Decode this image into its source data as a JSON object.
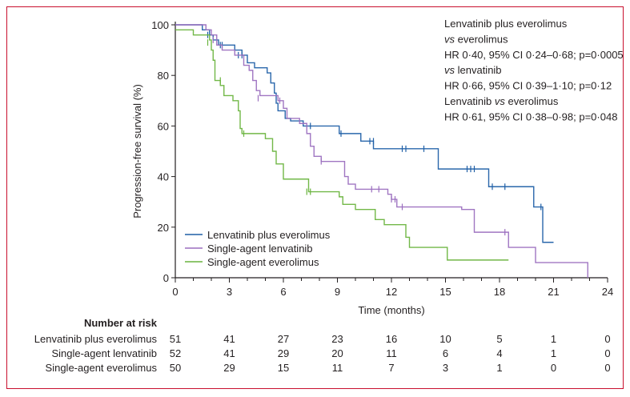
{
  "chart_data": {
    "type": "line",
    "subtype": "kaplan-meier",
    "title": "",
    "xlabel": "Time (months)",
    "ylabel": "Progression-free survival (%)",
    "xlim": [
      0,
      24
    ],
    "ylim": [
      0,
      100
    ],
    "xticks": [
      0,
      3,
      6,
      9,
      12,
      15,
      18,
      21,
      24
    ],
    "yticks": [
      0,
      20,
      40,
      60,
      80,
      100
    ],
    "grid": false,
    "legend_position": "bottom-left",
    "annotation_lines": [
      "Lenvatinib plus everolimus",
      "vs everolimus",
      "HR 0·40, 95% CI 0·24–0·68; p=0·0005",
      "vs lenvatinib",
      "HR 0·66, 95% CI 0·39–1·10; p=0·12",
      "Lenvatinib vs everolimus",
      "HR 0·61, 95% CI 0·38–0·98; p=0·048"
    ],
    "annotation_italic_prefix": [
      false,
      true,
      false,
      true,
      false,
      false,
      false
    ],
    "series": [
      {
        "name": "Lenvatinib plus everolimus",
        "color": "#1f5fa6",
        "steps": [
          [
            0,
            100
          ],
          [
            1.5,
            98
          ],
          [
            1.9,
            96
          ],
          [
            2.1,
            94
          ],
          [
            2.4,
            92
          ],
          [
            3.3,
            90
          ],
          [
            3.7,
            88
          ],
          [
            4.0,
            85
          ],
          [
            4.4,
            83
          ],
          [
            5.1,
            81
          ],
          [
            5.3,
            77
          ],
          [
            5.5,
            73
          ],
          [
            5.6,
            69
          ],
          [
            5.7,
            66
          ],
          [
            6.1,
            63
          ],
          [
            6.4,
            62
          ],
          [
            7.1,
            60
          ],
          [
            9.1,
            57
          ],
          [
            10.3,
            54
          ],
          [
            11.0,
            51
          ],
          [
            14.6,
            43
          ],
          [
            17.4,
            36
          ],
          [
            19.9,
            28
          ],
          [
            20.4,
            14
          ],
          [
            21.0,
            14
          ]
        ],
        "censored": [
          [
            1.8,
            96
          ],
          [
            2.5,
            92
          ],
          [
            2.6,
            92
          ],
          [
            3.5,
            88
          ],
          [
            3.7,
            88
          ],
          [
            7.5,
            60
          ],
          [
            9.2,
            57
          ],
          [
            10.8,
            54
          ],
          [
            11.0,
            54
          ],
          [
            12.6,
            51
          ],
          [
            12.8,
            51
          ],
          [
            13.8,
            51
          ],
          [
            16.2,
            43
          ],
          [
            16.4,
            43
          ],
          [
            16.6,
            43
          ],
          [
            17.6,
            36
          ],
          [
            18.3,
            36
          ],
          [
            20.3,
            28
          ]
        ]
      },
      {
        "name": "Single-agent lenvatinib",
        "color": "#9b6fbf",
        "steps": [
          [
            0,
            100
          ],
          [
            1.7,
            98
          ],
          [
            2.0,
            96
          ],
          [
            2.3,
            92
          ],
          [
            2.6,
            90
          ],
          [
            3.3,
            88
          ],
          [
            3.8,
            84
          ],
          [
            4.1,
            82
          ],
          [
            4.3,
            78
          ],
          [
            4.5,
            74
          ],
          [
            4.7,
            72
          ],
          [
            5.7,
            70
          ],
          [
            6.0,
            67
          ],
          [
            6.2,
            63
          ],
          [
            6.9,
            61
          ],
          [
            7.3,
            57
          ],
          [
            7.5,
            52
          ],
          [
            7.7,
            48
          ],
          [
            8.1,
            46
          ],
          [
            9.4,
            40
          ],
          [
            9.6,
            37
          ],
          [
            10.0,
            35
          ],
          [
            11.8,
            33
          ],
          [
            12.0,
            31
          ],
          [
            12.3,
            28
          ],
          [
            15.9,
            27
          ],
          [
            16.6,
            18
          ],
          [
            18.5,
            12
          ],
          [
            20.0,
            6
          ],
          [
            22.9,
            6
          ],
          [
            22.9,
            0
          ]
        ],
        "censored": [
          [
            2.1,
            94
          ],
          [
            4.6,
            71
          ],
          [
            5.8,
            70
          ],
          [
            8.1,
            46
          ],
          [
            10.9,
            35
          ],
          [
            11.3,
            35
          ],
          [
            12.0,
            31
          ],
          [
            12.2,
            31
          ],
          [
            12.6,
            28
          ],
          [
            18.3,
            18
          ]
        ]
      },
      {
        "name": "Single-agent everolimus",
        "color": "#6ab43e",
        "steps": [
          [
            0,
            98
          ],
          [
            1.0,
            96
          ],
          [
            1.9,
            94
          ],
          [
            2.0,
            90
          ],
          [
            2.1,
            86
          ],
          [
            2.2,
            78
          ],
          [
            2.5,
            76
          ],
          [
            2.7,
            72
          ],
          [
            3.2,
            70
          ],
          [
            3.5,
            66
          ],
          [
            3.6,
            59
          ],
          [
            3.7,
            57
          ],
          [
            5.0,
            55
          ],
          [
            5.4,
            50
          ],
          [
            5.6,
            45
          ],
          [
            6.0,
            39
          ],
          [
            7.4,
            34
          ],
          [
            9.1,
            32
          ],
          [
            9.3,
            29
          ],
          [
            10.0,
            27
          ],
          [
            11.1,
            23
          ],
          [
            11.6,
            21
          ],
          [
            12.8,
            16
          ],
          [
            13.0,
            12
          ],
          [
            15.1,
            7
          ],
          [
            18.5,
            7
          ]
        ],
        "censored": [
          [
            1.8,
            93
          ],
          [
            2.5,
            78
          ],
          [
            3.8,
            57
          ],
          [
            7.3,
            34
          ],
          [
            7.5,
            34
          ]
        ]
      }
    ],
    "risk_table": {
      "heading": "Number at risk",
      "times": [
        0,
        3,
        6,
        9,
        12,
        15,
        18,
        21,
        24
      ],
      "rows": [
        {
          "label": "Lenvatinib plus everolimus",
          "values": [
            "51",
            "41",
            "27",
            "23",
            "16",
            "10",
            "5",
            "1",
            "0"
          ]
        },
        {
          "label": "Single-agent lenvatinib",
          "values": [
            "52",
            "41",
            "29",
            "20",
            "11",
            "6",
            "4",
            "1",
            "0"
          ]
        },
        {
          "label": "Single-agent everolimus",
          "values": [
            "50",
            "29",
            "15",
            "11",
            "7",
            "3",
            "1",
            "0",
            "0"
          ]
        }
      ]
    }
  },
  "frame_color": "#c8102e",
  "axis_color": "#231f20"
}
